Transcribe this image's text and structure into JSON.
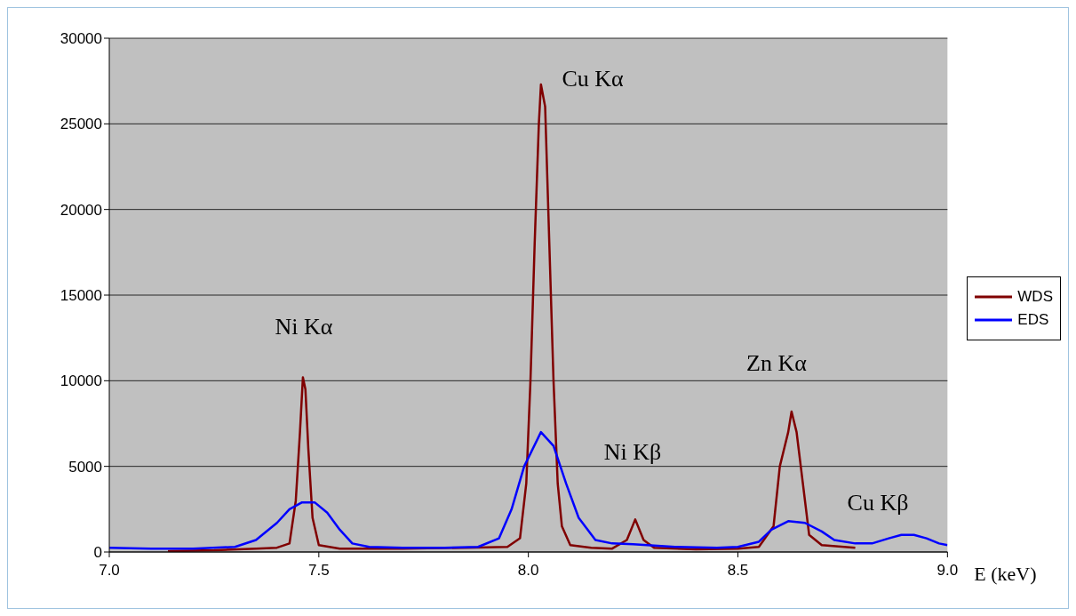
{
  "chart_data": {
    "type": "line",
    "xlabel": "E (keV)",
    "xlim": [
      7,
      9
    ],
    "xticks": [
      {
        "value": 7,
        "label": "7.0"
      },
      {
        "value": 7.5,
        "label": "7.5"
      },
      {
        "value": 8,
        "label": "8.0"
      },
      {
        "value": 8.5,
        "label": "8.5"
      },
      {
        "value": 9,
        "label": "9.0"
      }
    ],
    "ylim": [
      0,
      30000
    ],
    "yticks": [
      0,
      5000,
      10000,
      15000,
      20000,
      25000,
      30000
    ],
    "grid": "y",
    "legend": "right",
    "marker": "none",
    "line_style": "solid",
    "series": [
      {
        "name": "WDS",
        "color": "#800000",
        "x": [
          7.14,
          7.25,
          7.35,
          7.4,
          7.43,
          7.445,
          7.455,
          7.462,
          7.468,
          7.475,
          7.485,
          7.5,
          7.55,
          7.7,
          7.85,
          7.95,
          7.98,
          7.995,
          8.005,
          8.015,
          8.025,
          8.03,
          8.04,
          8.05,
          8.06,
          8.07,
          8.08,
          8.1,
          8.15,
          8.2,
          8.235,
          8.255,
          8.275,
          8.3,
          8.4,
          8.5,
          8.55,
          8.585,
          8.6,
          8.62,
          8.628,
          8.64,
          8.655,
          8.67,
          8.7,
          8.78
        ],
        "values": [
          50,
          100,
          200,
          250,
          500,
          3000,
          7000,
          10200,
          9500,
          6000,
          2000,
          400,
          200,
          200,
          250,
          300,
          800,
          4000,
          10000,
          18000,
          25000,
          27300,
          26000,
          18000,
          10000,
          4000,
          1500,
          400,
          250,
          200,
          700,
          1900,
          700,
          250,
          150,
          200,
          300,
          1500,
          5000,
          7000,
          8200,
          7000,
          4000,
          1000,
          400,
          250
        ]
      },
      {
        "name": "EDS",
        "color": "#0000ff",
        "x": [
          7,
          7.1,
          7.2,
          7.3,
          7.35,
          7.4,
          7.43,
          7.46,
          7.49,
          7.52,
          7.55,
          7.58,
          7.62,
          7.7,
          7.8,
          7.88,
          7.93,
          7.96,
          7.99,
          8.03,
          8.06,
          8.09,
          8.12,
          8.16,
          8.2,
          8.25,
          8.35,
          8.45,
          8.5,
          8.55,
          8.58,
          8.62,
          8.66,
          8.7,
          8.73,
          8.78,
          8.82,
          8.86,
          8.89,
          8.92,
          8.95,
          8.98,
          9
        ],
        "values": [
          250,
          200,
          200,
          300,
          700,
          1700,
          2500,
          2900,
          2900,
          2300,
          1300,
          500,
          300,
          250,
          250,
          300,
          800,
          2500,
          5000,
          7000,
          6200,
          4000,
          2000,
          700,
          500,
          450,
          300,
          250,
          300,
          600,
          1300,
          1800,
          1700,
          1200,
          700,
          500,
          500,
          800,
          1000,
          1000,
          800,
          500,
          400
        ]
      }
    ],
    "annotations": [
      "Ni Kα",
      "Cu Kα",
      "Ni Kβ",
      "Zn Kα",
      "Cu Kβ"
    ]
  }
}
